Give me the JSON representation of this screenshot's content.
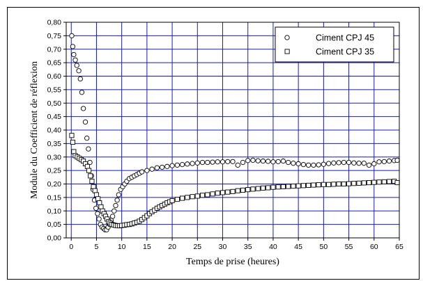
{
  "chart_data": {
    "type": "scatter",
    "xlabel": "Temps de prise (heures)",
    "ylabel": "Module du Coefficient de réflexion",
    "xlim": [
      -1,
      65
    ],
    "ylim": [
      0,
      0.8
    ],
    "xticks": [
      "0",
      "5",
      "10",
      "15",
      "20",
      "25",
      "30",
      "35",
      "40",
      "45",
      "50",
      "55",
      "60",
      "65"
    ],
    "yticks": [
      "0,00",
      "0,05",
      "0,10",
      "0,15",
      "0,20",
      "0,25",
      "0,30",
      "0,35",
      "0,40",
      "0,45",
      "0,50",
      "0,55",
      "0,60",
      "0,65",
      "0,70",
      "0,75",
      "0,80"
    ],
    "grid": true,
    "grid_color": "#1a1ab0",
    "legend_position": "top-right",
    "series": [
      {
        "name": "Ciment CPJ 45",
        "marker": "circle",
        "points": [
          [
            0.1,
            0.75
          ],
          [
            0.3,
            0.71
          ],
          [
            0.5,
            0.68
          ],
          [
            0.8,
            0.66
          ],
          [
            1.1,
            0.64
          ],
          [
            1.5,
            0.62
          ],
          [
            1.8,
            0.59
          ],
          [
            2.1,
            0.54
          ],
          [
            2.4,
            0.48
          ],
          [
            2.8,
            0.43
          ],
          [
            3.1,
            0.37
          ],
          [
            3.4,
            0.33
          ],
          [
            3.7,
            0.28
          ],
          [
            4.0,
            0.23
          ],
          [
            4.3,
            0.18
          ],
          [
            4.6,
            0.14
          ],
          [
            4.9,
            0.11
          ],
          [
            5.2,
            0.09
          ],
          [
            5.5,
            0.07
          ],
          [
            5.8,
            0.05
          ],
          [
            6.1,
            0.04
          ],
          [
            6.4,
            0.035
          ],
          [
            6.7,
            0.03
          ],
          [
            7.0,
            0.03
          ],
          [
            7.3,
            0.04
          ],
          [
            7.6,
            0.05
          ],
          [
            7.9,
            0.065
          ],
          [
            8.2,
            0.08
          ],
          [
            8.5,
            0.1
          ],
          [
            8.8,
            0.12
          ],
          [
            9.1,
            0.14
          ],
          [
            9.4,
            0.16
          ],
          [
            9.8,
            0.18
          ],
          [
            10.2,
            0.19
          ],
          [
            10.6,
            0.2
          ],
          [
            11.0,
            0.21
          ],
          [
            11.5,
            0.22
          ],
          [
            12.0,
            0.225
          ],
          [
            12.5,
            0.23
          ],
          [
            13.0,
            0.235
          ],
          [
            13.5,
            0.24
          ],
          [
            14.0,
            0.245
          ],
          [
            15.0,
            0.25
          ],
          [
            16.0,
            0.255
          ],
          [
            17.0,
            0.26
          ],
          [
            18.0,
            0.262
          ],
          [
            19.0,
            0.265
          ],
          [
            20.0,
            0.268
          ],
          [
            21.0,
            0.27
          ],
          [
            22.0,
            0.272
          ],
          [
            23.0,
            0.274
          ],
          [
            24.0,
            0.276
          ],
          [
            25.0,
            0.278
          ],
          [
            26.0,
            0.28
          ],
          [
            27.0,
            0.28
          ],
          [
            28.0,
            0.281
          ],
          [
            29.0,
            0.282
          ],
          [
            30.0,
            0.282
          ],
          [
            31.0,
            0.283
          ],
          [
            32.0,
            0.283
          ],
          [
            33.0,
            0.27
          ],
          [
            34.0,
            0.28
          ],
          [
            35.0,
            0.287
          ],
          [
            36.0,
            0.288
          ],
          [
            37.0,
            0.286
          ],
          [
            38.0,
            0.285
          ],
          [
            39.0,
            0.284
          ],
          [
            40.0,
            0.282
          ],
          [
            41.0,
            0.283
          ],
          [
            42.0,
            0.285
          ],
          [
            43.0,
            0.28
          ],
          [
            44.0,
            0.277
          ],
          [
            45.0,
            0.275
          ],
          [
            46.0,
            0.272
          ],
          [
            47.0,
            0.27
          ],
          [
            48.0,
            0.27
          ],
          [
            49.0,
            0.271
          ],
          [
            50.0,
            0.273
          ],
          [
            51.0,
            0.276
          ],
          [
            52.0,
            0.278
          ],
          [
            53.0,
            0.279
          ],
          [
            54.0,
            0.28
          ],
          [
            55.0,
            0.28
          ],
          [
            56.0,
            0.278
          ],
          [
            57.0,
            0.277
          ],
          [
            58.0,
            0.277
          ],
          [
            59.0,
            0.27
          ],
          [
            60.0,
            0.275
          ],
          [
            61.0,
            0.282
          ],
          [
            62.0,
            0.283
          ],
          [
            63.0,
            0.285
          ],
          [
            64.0,
            0.287
          ],
          [
            64.6,
            0.288
          ]
        ]
      },
      {
        "name": "Ciment CPJ 35",
        "marker": "square",
        "points": [
          [
            0.1,
            0.38
          ],
          [
            0.3,
            0.355
          ],
          [
            0.5,
            0.32
          ],
          [
            0.8,
            0.305
          ],
          [
            1.2,
            0.3
          ],
          [
            1.6,
            0.295
          ],
          [
            2.0,
            0.29
          ],
          [
            2.4,
            0.285
          ],
          [
            2.8,
            0.275
          ],
          [
            3.2,
            0.265
          ],
          [
            3.5,
            0.25
          ],
          [
            3.8,
            0.23
          ],
          [
            4.1,
            0.21
          ],
          [
            4.4,
            0.19
          ],
          [
            4.7,
            0.175
          ],
          [
            5.0,
            0.16
          ],
          [
            5.3,
            0.145
          ],
          [
            5.6,
            0.13
          ],
          [
            5.9,
            0.115
          ],
          [
            6.2,
            0.1
          ],
          [
            6.5,
            0.09
          ],
          [
            6.8,
            0.08
          ],
          [
            7.1,
            0.07
          ],
          [
            7.4,
            0.06
          ],
          [
            7.7,
            0.055
          ],
          [
            8.0,
            0.05
          ],
          [
            8.4,
            0.048
          ],
          [
            8.8,
            0.046
          ],
          [
            9.2,
            0.045
          ],
          [
            9.6,
            0.045
          ],
          [
            10.0,
            0.046
          ],
          [
            10.5,
            0.047
          ],
          [
            11.0,
            0.049
          ],
          [
            11.5,
            0.05
          ],
          [
            12.0,
            0.052
          ],
          [
            12.5,
            0.055
          ],
          [
            13.0,
            0.058
          ],
          [
            13.5,
            0.062
          ],
          [
            14.0,
            0.068
          ],
          [
            14.5,
            0.075
          ],
          [
            15.0,
            0.082
          ],
          [
            15.5,
            0.09
          ],
          [
            16.0,
            0.097
          ],
          [
            16.5,
            0.103
          ],
          [
            17.0,
            0.11
          ],
          [
            17.5,
            0.115
          ],
          [
            18.0,
            0.12
          ],
          [
            18.5,
            0.125
          ],
          [
            19.0,
            0.13
          ],
          [
            19.5,
            0.134
          ],
          [
            20.0,
            0.138
          ],
          [
            21.0,
            0.143
          ],
          [
            22.0,
            0.147
          ],
          [
            23.0,
            0.15
          ],
          [
            24.0,
            0.153
          ],
          [
            25.0,
            0.155
          ],
          [
            26.0,
            0.158
          ],
          [
            27.0,
            0.16
          ],
          [
            28.0,
            0.163
          ],
          [
            29.0,
            0.166
          ],
          [
            30.0,
            0.168
          ],
          [
            31.0,
            0.17
          ],
          [
            32.0,
            0.172
          ],
          [
            33.0,
            0.175
          ],
          [
            34.0,
            0.177
          ],
          [
            35.0,
            0.179
          ],
          [
            36.0,
            0.181
          ],
          [
            37.0,
            0.183
          ],
          [
            38.0,
            0.185
          ],
          [
            39.0,
            0.186
          ],
          [
            40.0,
            0.188
          ],
          [
            41.0,
            0.189
          ],
          [
            42.0,
            0.19
          ],
          [
            43.0,
            0.191
          ],
          [
            44.0,
            0.192
          ],
          [
            45.0,
            0.193
          ],
          [
            46.0,
            0.194
          ],
          [
            47.0,
            0.195
          ],
          [
            48.0,
            0.196
          ],
          [
            49.0,
            0.197
          ],
          [
            50.0,
            0.198
          ],
          [
            51.0,
            0.198
          ],
          [
            52.0,
            0.199
          ],
          [
            53.0,
            0.2
          ],
          [
            54.0,
            0.2
          ],
          [
            55.0,
            0.201
          ],
          [
            56.0,
            0.202
          ],
          [
            57.0,
            0.203
          ],
          [
            58.0,
            0.204
          ],
          [
            59.0,
            0.205
          ],
          [
            60.0,
            0.206
          ],
          [
            61.0,
            0.207
          ],
          [
            62.0,
            0.208
          ],
          [
            63.0,
            0.209
          ],
          [
            64.0,
            0.21
          ],
          [
            64.6,
            0.205
          ]
        ]
      }
    ]
  }
}
